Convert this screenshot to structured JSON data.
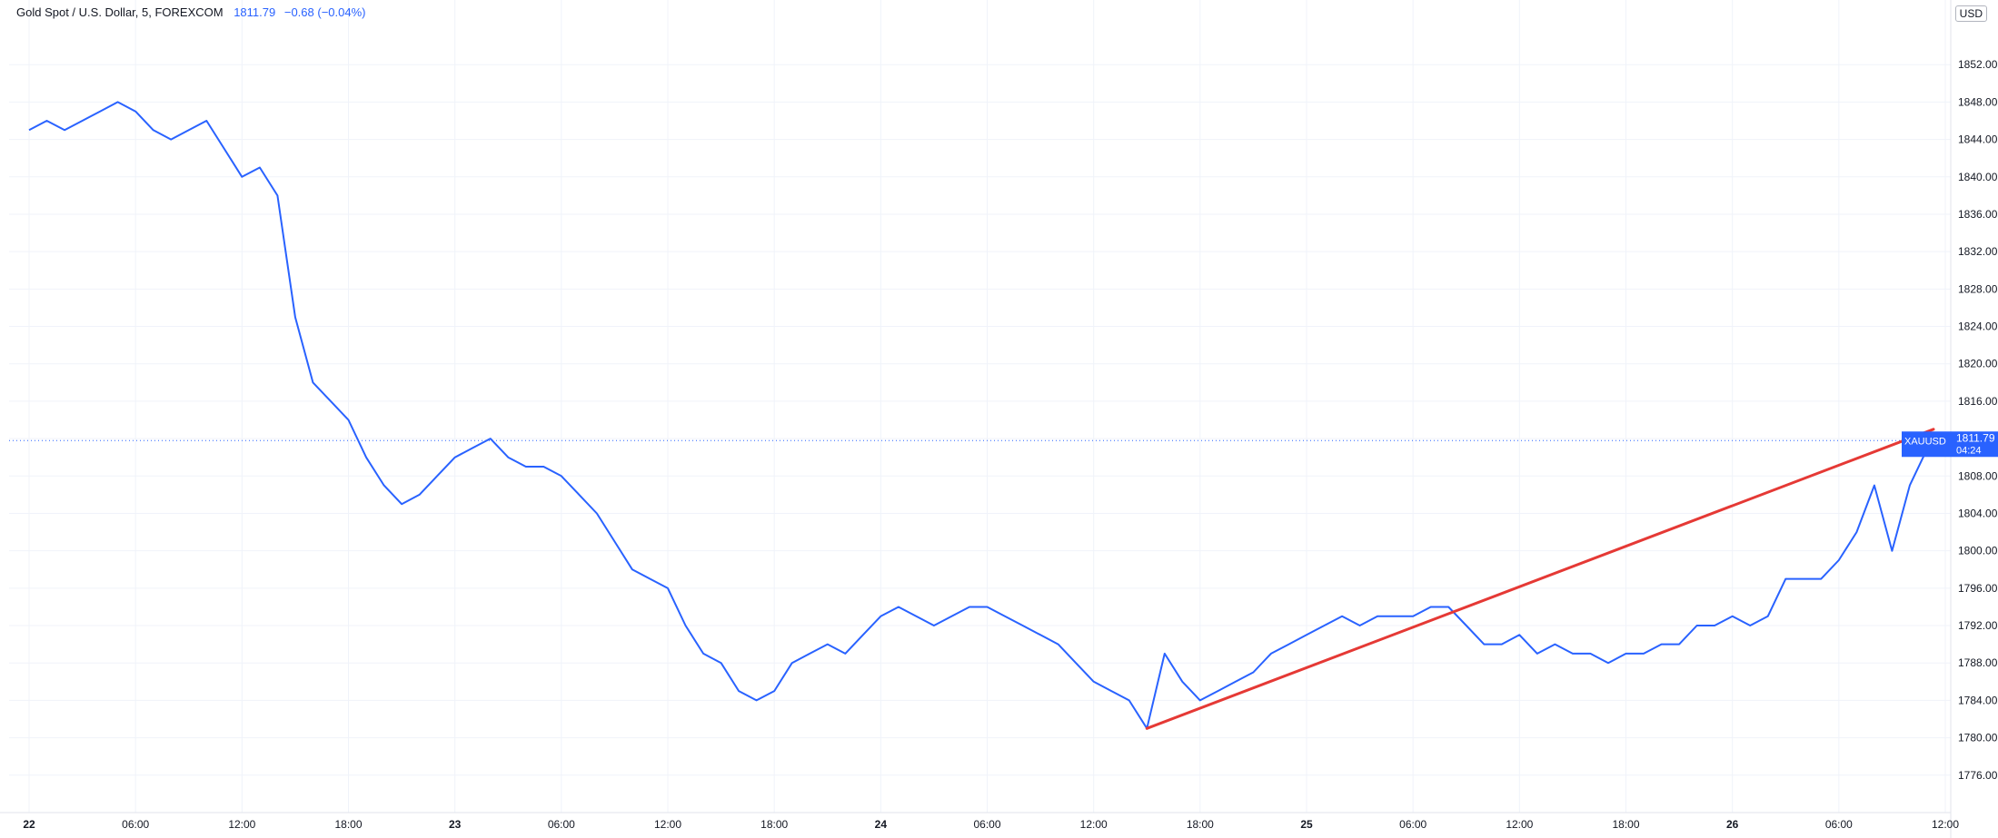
{
  "header": {
    "symbol_label": "Gold Spot / U.S. Dollar, 5, FOREXCOM",
    "last_price": "1811.79",
    "change": "−0.68 (−0.04%)"
  },
  "currency": "USD",
  "price_tag": {
    "symbol": "XAUUSD",
    "price": "1811.79",
    "countdown": "04:24"
  },
  "colors": {
    "series": "#2962ff",
    "trendline": "#e53935",
    "tag_bg": "#2962ff"
  },
  "chart_data": {
    "type": "line",
    "title": "Gold Spot / U.S. Dollar, 5, FOREXCOM",
    "grid": true,
    "ylim": [
      1772,
      1856
    ],
    "xlim": [
      "2022-07-22 00:00",
      "2022-07-26 12:00"
    ],
    "y_ticks": [
      "1776.00",
      "1780.00",
      "1784.00",
      "1788.00",
      "1792.00",
      "1796.00",
      "1800.00",
      "1804.00",
      "1808.00",
      "1812.00",
      "1816.00",
      "1820.00",
      "1824.00",
      "1828.00",
      "1832.00",
      "1836.00",
      "1840.00",
      "1844.00",
      "1848.00",
      "1852.00"
    ],
    "x_ticks": [
      {
        "label": "22",
        "t": "2022-07-22 00:00",
        "bold": true
      },
      {
        "label": "06:00",
        "t": "2022-07-22 06:00"
      },
      {
        "label": "12:00",
        "t": "2022-07-22 12:00"
      },
      {
        "label": "18:00",
        "t": "2022-07-22 18:00"
      },
      {
        "label": "23",
        "t": "2022-07-23 00:00",
        "bold": true
      },
      {
        "label": "06:00",
        "t": "2022-07-23 06:00"
      },
      {
        "label": "12:00",
        "t": "2022-07-23 12:00"
      },
      {
        "label": "18:00",
        "t": "2022-07-23 18:00"
      },
      {
        "label": "24",
        "t": "2022-07-24 00:00",
        "bold": true
      },
      {
        "label": "06:00",
        "t": "2022-07-24 06:00"
      },
      {
        "label": "12:00",
        "t": "2022-07-24 12:00"
      },
      {
        "label": "18:00",
        "t": "2022-07-24 18:00"
      },
      {
        "label": "25",
        "t": "2022-07-25 00:00",
        "bold": true
      },
      {
        "label": "06:00",
        "t": "2022-07-25 06:00"
      },
      {
        "label": "12:00",
        "t": "2022-07-25 12:00"
      },
      {
        "label": "18:00",
        "t": "2022-07-25 18:00"
      },
      {
        "label": "26",
        "t": "2022-07-26 00:00",
        "bold": true
      },
      {
        "label": "06:00",
        "t": "2022-07-26 06:00"
      },
      {
        "label": "12:00",
        "t": "2022-07-26 12:00"
      }
    ],
    "series": [
      {
        "values": [
          [
            "2022-07-22 00:00",
            1845
          ],
          [
            "2022-07-22 01:00",
            1846
          ],
          [
            "2022-07-22 02:00",
            1845
          ],
          [
            "2022-07-22 03:00",
            1846
          ],
          [
            "2022-07-22 04:00",
            1847
          ],
          [
            "2022-07-22 05:00",
            1848
          ],
          [
            "2022-07-22 06:00",
            1847
          ],
          [
            "2022-07-22 07:00",
            1845
          ],
          [
            "2022-07-22 08:00",
            1844
          ],
          [
            "2022-07-22 09:00",
            1845
          ],
          [
            "2022-07-22 10:00",
            1846
          ],
          [
            "2022-07-22 11:00",
            1843
          ],
          [
            "2022-07-22 12:00",
            1840
          ],
          [
            "2022-07-22 13:00",
            1841
          ],
          [
            "2022-07-22 14:00",
            1838
          ],
          [
            "2022-07-22 15:00",
            1825
          ],
          [
            "2022-07-22 16:00",
            1818
          ],
          [
            "2022-07-22 17:00",
            1816
          ],
          [
            "2022-07-22 18:00",
            1814
          ],
          [
            "2022-07-22 19:00",
            1810
          ],
          [
            "2022-07-22 20:00",
            1807
          ],
          [
            "2022-07-22 21:00",
            1805
          ],
          [
            "2022-07-22 22:00",
            1806
          ],
          [
            "2022-07-22 23:00",
            1808
          ],
          [
            "2022-07-23 00:00",
            1810
          ],
          [
            "2022-07-23 01:00",
            1811
          ],
          [
            "2022-07-23 02:00",
            1812
          ],
          [
            "2022-07-23 03:00",
            1810
          ],
          [
            "2022-07-23 04:00",
            1809
          ],
          [
            "2022-07-23 05:00",
            1809
          ],
          [
            "2022-07-23 06:00",
            1808
          ],
          [
            "2022-07-23 07:00",
            1806
          ],
          [
            "2022-07-23 08:00",
            1804
          ],
          [
            "2022-07-23 09:00",
            1801
          ],
          [
            "2022-07-23 10:00",
            1798
          ],
          [
            "2022-07-23 11:00",
            1797
          ],
          [
            "2022-07-23 12:00",
            1796
          ],
          [
            "2022-07-23 13:00",
            1792
          ],
          [
            "2022-07-23 14:00",
            1789
          ],
          [
            "2022-07-23 15:00",
            1788
          ],
          [
            "2022-07-23 16:00",
            1785
          ],
          [
            "2022-07-23 17:00",
            1784
          ],
          [
            "2022-07-23 18:00",
            1785
          ],
          [
            "2022-07-23 19:00",
            1788
          ],
          [
            "2022-07-23 20:00",
            1789
          ],
          [
            "2022-07-23 21:00",
            1790
          ],
          [
            "2022-07-23 22:00",
            1789
          ],
          [
            "2022-07-23 23:00",
            1791
          ],
          [
            "2022-07-24 00:00",
            1793
          ],
          [
            "2022-07-24 01:00",
            1794
          ],
          [
            "2022-07-24 02:00",
            1793
          ],
          [
            "2022-07-24 03:00",
            1792
          ],
          [
            "2022-07-24 04:00",
            1793
          ],
          [
            "2022-07-24 05:00",
            1794
          ],
          [
            "2022-07-24 06:00",
            1794
          ],
          [
            "2022-07-24 07:00",
            1793
          ],
          [
            "2022-07-24 08:00",
            1792
          ],
          [
            "2022-07-24 09:00",
            1791
          ],
          [
            "2022-07-24 10:00",
            1790
          ],
          [
            "2022-07-24 11:00",
            1788
          ],
          [
            "2022-07-24 12:00",
            1786
          ],
          [
            "2022-07-24 13:00",
            1785
          ],
          [
            "2022-07-24 14:00",
            1784
          ],
          [
            "2022-07-24 15:00",
            1781
          ],
          [
            "2022-07-24 16:00",
            1789
          ],
          [
            "2022-07-24 17:00",
            1786
          ],
          [
            "2022-07-24 18:00",
            1784
          ],
          [
            "2022-07-24 19:00",
            1785
          ],
          [
            "2022-07-24 20:00",
            1786
          ],
          [
            "2022-07-24 21:00",
            1787
          ],
          [
            "2022-07-24 22:00",
            1789
          ],
          [
            "2022-07-24 23:00",
            1790
          ],
          [
            "2022-07-25 00:00",
            1791
          ],
          [
            "2022-07-25 01:00",
            1792
          ],
          [
            "2022-07-25 02:00",
            1793
          ],
          [
            "2022-07-25 03:00",
            1792
          ],
          [
            "2022-07-25 04:00",
            1793
          ],
          [
            "2022-07-25 05:00",
            1793
          ],
          [
            "2022-07-25 06:00",
            1793
          ],
          [
            "2022-07-25 07:00",
            1794
          ],
          [
            "2022-07-25 08:00",
            1794
          ],
          [
            "2022-07-25 09:00",
            1792
          ],
          [
            "2022-07-25 10:00",
            1790
          ],
          [
            "2022-07-25 11:00",
            1790
          ],
          [
            "2022-07-25 12:00",
            1791
          ],
          [
            "2022-07-25 13:00",
            1789
          ],
          [
            "2022-07-25 14:00",
            1790
          ],
          [
            "2022-07-25 15:00",
            1789
          ],
          [
            "2022-07-25 16:00",
            1789
          ],
          [
            "2022-07-25 17:00",
            1788
          ],
          [
            "2022-07-25 18:00",
            1789
          ],
          [
            "2022-07-25 19:00",
            1789
          ],
          [
            "2022-07-25 20:00",
            1790
          ],
          [
            "2022-07-25 21:00",
            1790
          ],
          [
            "2022-07-25 22:00",
            1792
          ],
          [
            "2022-07-25 23:00",
            1792
          ],
          [
            "2022-07-26 00:00",
            1793
          ],
          [
            "2022-07-26 01:00",
            1792
          ],
          [
            "2022-07-26 02:00",
            1793
          ],
          [
            "2022-07-26 03:00",
            1797
          ],
          [
            "2022-07-26 04:00",
            1797
          ],
          [
            "2022-07-26 05:00",
            1797
          ],
          [
            "2022-07-26 06:00",
            1799
          ],
          [
            "2022-07-26 07:00",
            1802
          ],
          [
            "2022-07-26 08:00",
            1807
          ],
          [
            "2022-07-26 09:00",
            1800
          ],
          [
            "2022-07-26 10:00",
            1807
          ],
          [
            "2022-07-26 11:00",
            1811
          ],
          [
            "2022-07-26 11:20",
            1811.79
          ]
        ]
      }
    ],
    "annotations": [
      {
        "type": "trendline",
        "from": [
          "2022-07-24 15:00",
          1781
        ],
        "to": [
          "2022-07-26 11:20",
          1813
        ],
        "color": "#e53935"
      },
      {
        "type": "horizontal_price_line",
        "value": 1811.79,
        "style": "dotted"
      }
    ]
  }
}
